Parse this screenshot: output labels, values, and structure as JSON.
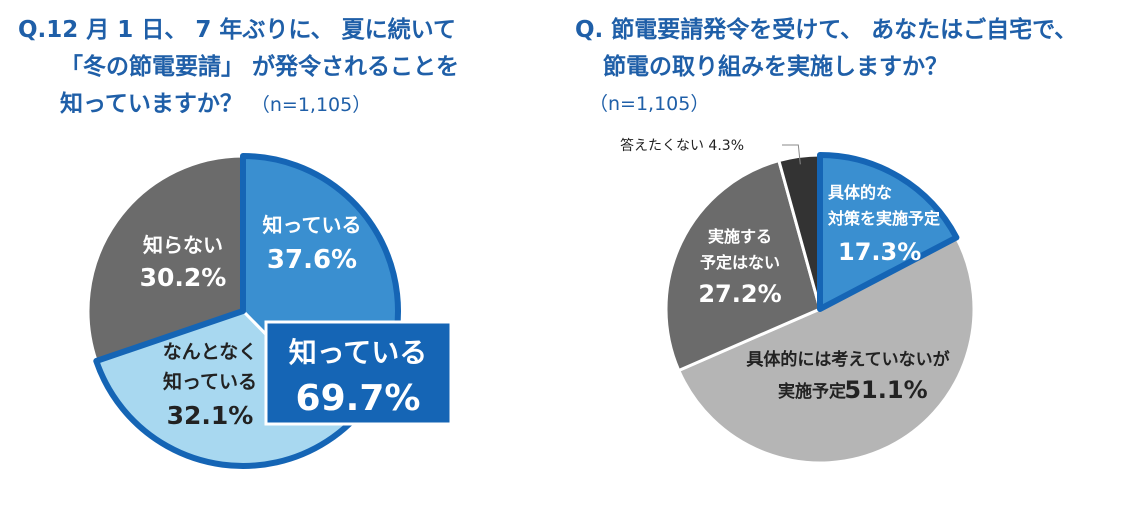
{
  "question1": {
    "line1": "Q.12 月 1 日、 7 年ぶりに、 夏に続いて",
    "line2": "「冬の節電要請」 が発令されることを",
    "line3": "知っていますか？",
    "n_label": "（n=1,105）"
  },
  "question2": {
    "line1": "Q. 節電要請発令を受けて、 あなたはご自宅で、",
    "line2": "節電の取り組みを実施しますか？",
    "n_label": "（n=1,105）"
  },
  "colors": {
    "title": "#1f5fa8",
    "blue": "#3a8fd0",
    "light_blue": "#a8d8f0",
    "dark_gray": "#6b6b6b",
    "light_gray": "#b5b5b5",
    "black": "#333333",
    "outline": "#1565b5",
    "callout": "#1565b5"
  },
  "chart_data": [
    {
      "type": "pie",
      "slices": [
        {
          "label": "知っている",
          "value": 37.6,
          "value_label": "37.6%"
        },
        {
          "label": "なんとなく知っている",
          "label_lines": [
            "なんとなく",
            "知っている"
          ],
          "value": 32.1,
          "value_label": "32.1%"
        },
        {
          "label": "知らない",
          "value": 30.2,
          "value_label": "30.2%"
        }
      ],
      "callout": {
        "label": "知っている",
        "value": 69.7,
        "value_label": "69.7%"
      }
    },
    {
      "type": "pie",
      "slices": [
        {
          "label": "具体的な対策を実施予定",
          "label_lines": [
            "具体的な",
            "対策を実施予定"
          ],
          "value": 17.3,
          "value_label": "17.3%"
        },
        {
          "label": "具体的には考えていないが実施予定",
          "label_lines": [
            "具体的には考えていないが",
            "実施予定"
          ],
          "value": 51.1,
          "value_label": "51.1%"
        },
        {
          "label": "実施する予定はない",
          "label_lines": [
            "実施する",
            "予定はない"
          ],
          "value": 27.2,
          "value_label": "27.2%"
        },
        {
          "label": "答えたくない",
          "value": 4.3,
          "value_label": "4.3%"
        }
      ]
    }
  ]
}
